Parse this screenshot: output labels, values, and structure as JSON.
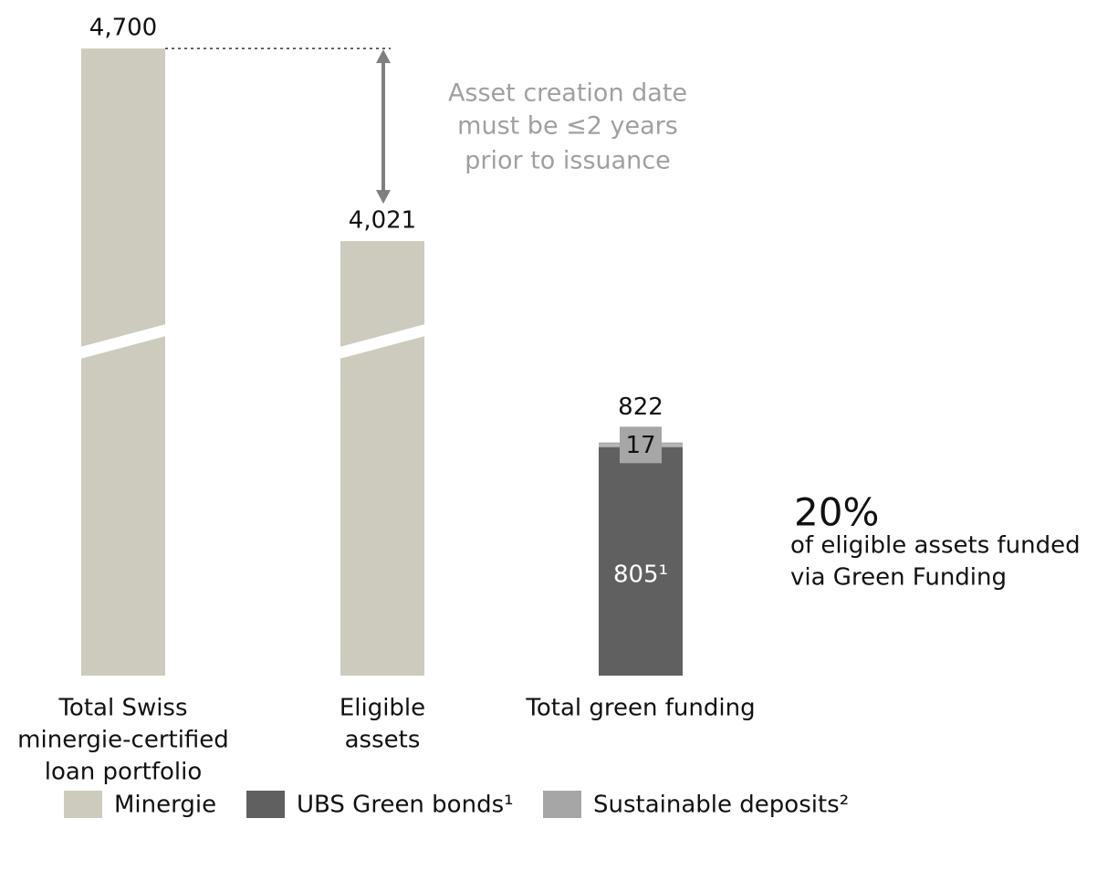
{
  "chart_data": {
    "type": "stacked_bar",
    "categories": [
      [
        "Total Swiss",
        "minergie-certified",
        "loan portfolio"
      ],
      [
        "Eligible",
        "assets"
      ],
      [
        "Total green funding"
      ]
    ],
    "series": [
      {
        "name": "Minergie",
        "color": "#cdcbbd",
        "values": [
          4700,
          4021,
          null
        ]
      },
      {
        "name": "UBS Green bonds¹",
        "color": "#5f605f",
        "values": [
          null,
          null,
          805
        ],
        "value_labels": [
          null,
          null,
          "805¹"
        ]
      },
      {
        "name": "Sustainable deposits²",
        "color": "#a6a6a6",
        "values": [
          null,
          null,
          17
        ]
      }
    ],
    "totals": [
      4700,
      4021,
      822
    ],
    "total_labels": [
      "4,700",
      "4,021",
      "822"
    ],
    "axis_break": true,
    "annotation": [
      "Asset creation date",
      "must be ≤2 years",
      "prior to issuance"
    ],
    "callout": {
      "value": "20%",
      "text": [
        "of eligible assets funded",
        "via Green Funding"
      ]
    },
    "legend": "bottom-left"
  }
}
